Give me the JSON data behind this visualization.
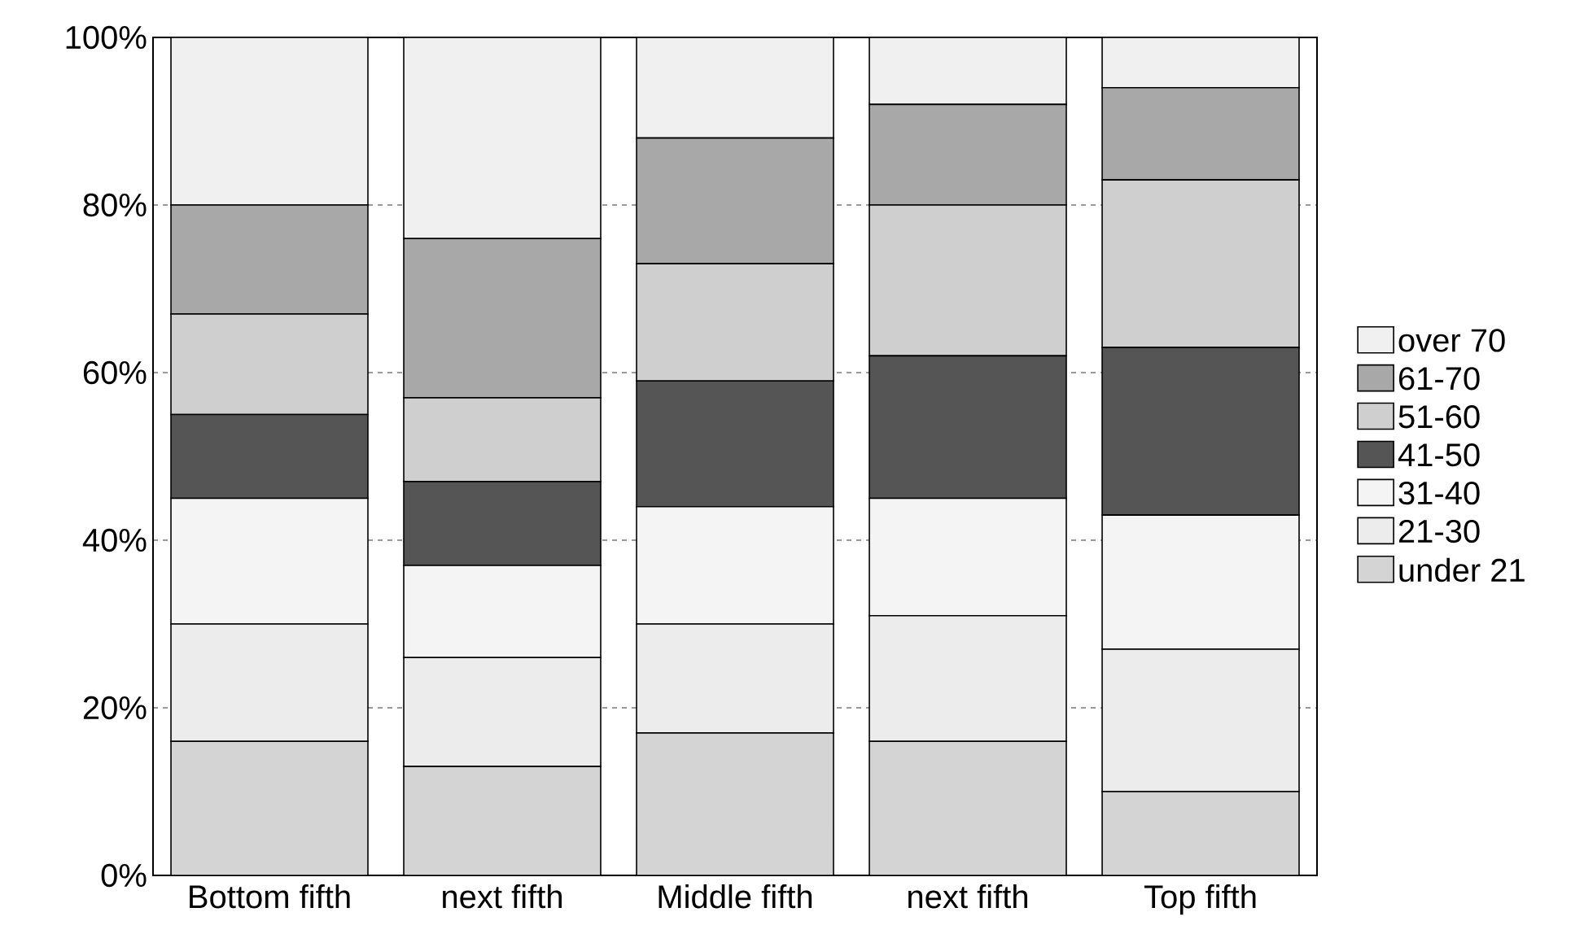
{
  "chart_data": {
    "type": "bar",
    "stacked": true,
    "categories": [
      "Bottom fifth",
      "next fifth",
      "Middle fifth",
      "next fifth",
      "Top fifth"
    ],
    "series": [
      {
        "name": "under 21",
        "color": "#d4d4d4",
        "values": [
          16,
          13,
          17,
          16,
          10
        ]
      },
      {
        "name": "21-30",
        "color": "#ececec",
        "values": [
          14,
          13,
          13,
          15,
          17
        ]
      },
      {
        "name": "31-40",
        "color": "#f4f4f4",
        "values": [
          15,
          11,
          14,
          14,
          16
        ]
      },
      {
        "name": "41-50",
        "color": "#555555",
        "values": [
          10,
          10,
          15,
          17,
          20
        ]
      },
      {
        "name": "51-60",
        "color": "#cfcfcf",
        "values": [
          12,
          10,
          14,
          18,
          20
        ]
      },
      {
        "name": "61-70",
        "color": "#a8a8a8",
        "values": [
          13,
          19,
          15,
          12,
          11
        ]
      },
      {
        "name": "over 70",
        "color": "#f0f0f0",
        "values": [
          20,
          24,
          12,
          8,
          6
        ]
      }
    ],
    "ylim": [
      0,
      100
    ],
    "yticks": [
      {
        "value": 0,
        "label": "0%"
      },
      {
        "value": 20,
        "label": "20%"
      },
      {
        "value": 40,
        "label": "40%"
      },
      {
        "value": 60,
        "label": "60%"
      },
      {
        "value": 80,
        "label": "80%"
      },
      {
        "value": 100,
        "label": "100%"
      }
    ],
    "grid": "y",
    "legend": "right"
  }
}
